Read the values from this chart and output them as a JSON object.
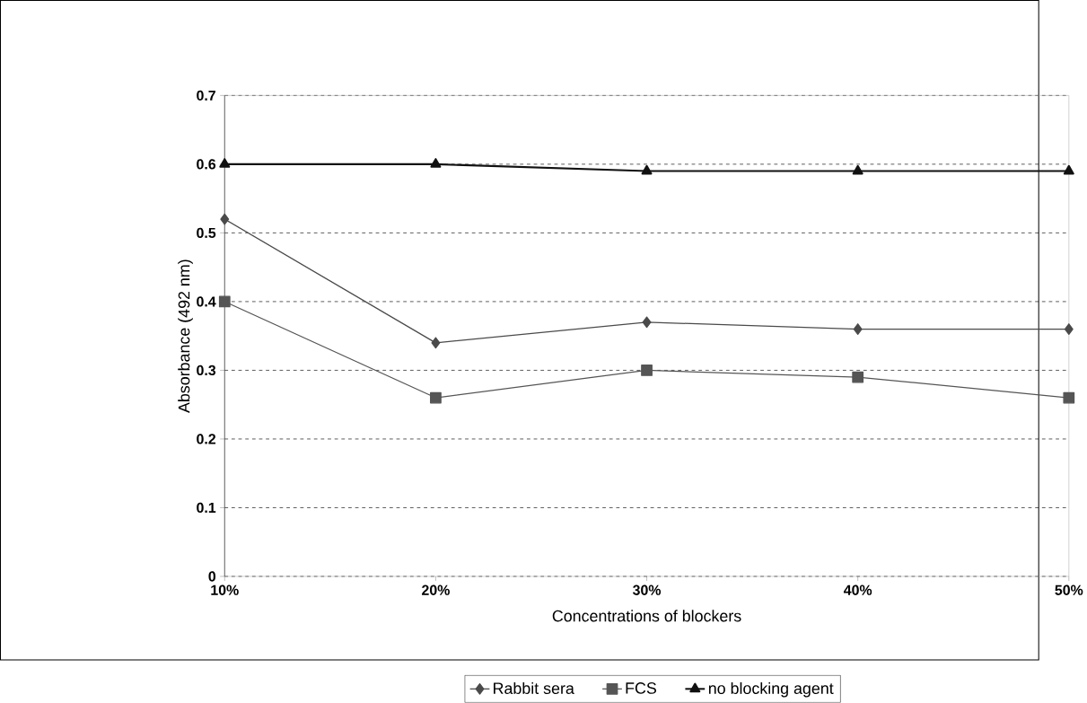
{
  "chart_data": {
    "type": "line",
    "xlabel": "Concentrations of blockers",
    "ylabel": "Absorbance (492 nm)",
    "categories": [
      "10%",
      "20%",
      "30%",
      "40%",
      "50%"
    ],
    "series": [
      {
        "name": "Rabbit sera",
        "color": "#4a4a4a",
        "marker": "diamond",
        "values": [
          0.52,
          0.34,
          0.37,
          0.36,
          0.36
        ]
      },
      {
        "name": "FCS",
        "color": "#555555",
        "marker": "square",
        "values": [
          0.4,
          0.26,
          0.3,
          0.29,
          0.26
        ]
      },
      {
        "name": "no blocking agent",
        "color": "#111111",
        "marker": "triangle",
        "values": [
          0.6,
          0.6,
          0.59,
          0.59,
          0.59
        ]
      }
    ],
    "ylim": [
      0,
      0.7
    ],
    "yticks": [
      0,
      0.1,
      0.2,
      0.3,
      0.4,
      0.5,
      0.6,
      0.7
    ],
    "grid": "y",
    "legend": "bottom",
    "line_style": "solid"
  }
}
